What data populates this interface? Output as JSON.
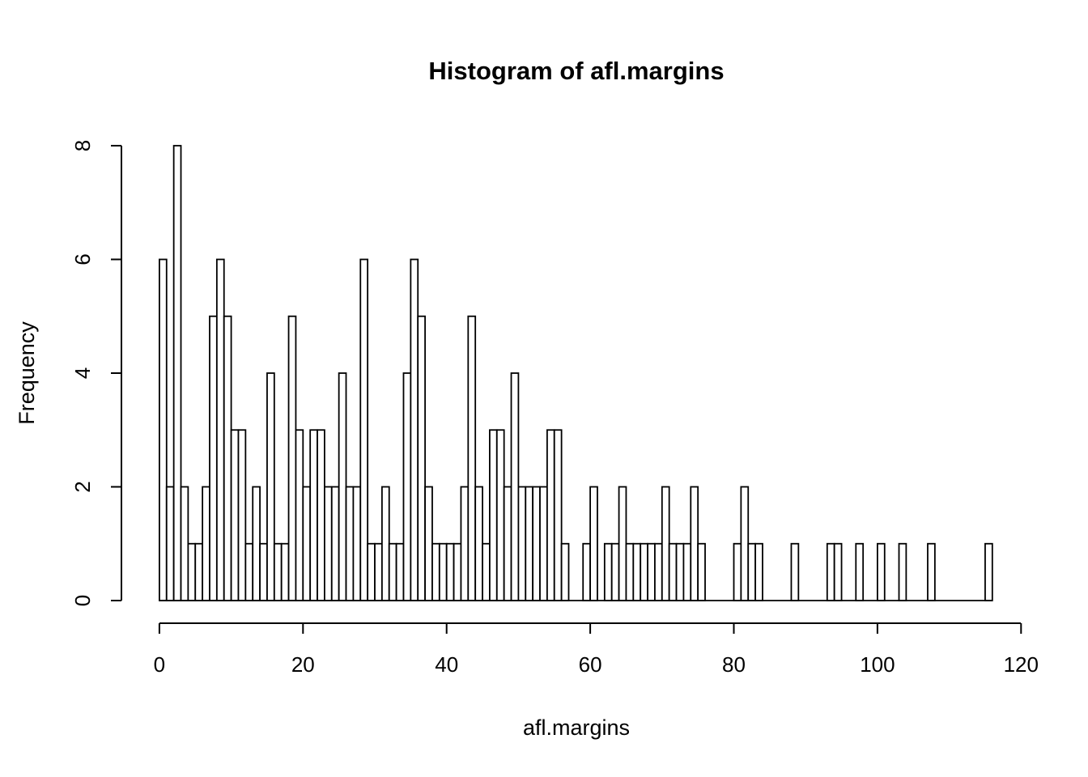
{
  "chart_data": {
    "type": "bar",
    "subtype": "histogram",
    "title": "Histogram of afl.margins",
    "xlabel": "afl.margins",
    "ylabel": "Frequency",
    "x_tick_labels": [
      "0",
      "20",
      "40",
      "60",
      "80",
      "100",
      "120"
    ],
    "x_tick_values": [
      0,
      20,
      40,
      60,
      80,
      100,
      120
    ],
    "y_tick_labels": [
      "0",
      "2",
      "4",
      "6",
      "8"
    ],
    "y_tick_values": [
      0,
      2,
      4,
      6,
      8
    ],
    "xlim": [
      0,
      120
    ],
    "ylim": [
      0,
      8
    ],
    "bin_start": 0,
    "bin_width": 1,
    "bin_count": 116,
    "grid": "off",
    "legend": "none",
    "bar_fill_color": "#ffffff",
    "bar_stroke_color": "#000000",
    "background_color": "#ffffff",
    "frequencies": [
      6,
      2,
      8,
      2,
      1,
      1,
      2,
      5,
      6,
      5,
      3,
      3,
      1,
      2,
      1,
      4,
      1,
      1,
      5,
      3,
      2,
      3,
      3,
      2,
      2,
      4,
      2,
      2,
      6,
      1,
      1,
      2,
      1,
      1,
      4,
      6,
      5,
      2,
      1,
      1,
      1,
      1,
      2,
      5,
      2,
      1,
      3,
      3,
      2,
      4,
      2,
      2,
      2,
      2,
      3,
      3,
      1,
      0,
      0,
      1,
      2,
      0,
      1,
      1,
      2,
      1,
      1,
      1,
      1,
      1,
      2,
      1,
      1,
      1,
      2,
      1,
      0,
      0,
      0,
      0,
      1,
      2,
      1,
      1,
      0,
      0,
      0,
      0,
      1,
      0,
      0,
      0,
      0,
      1,
      1,
      0,
      0,
      1,
      0,
      0,
      1,
      0,
      0,
      1,
      0,
      0,
      0,
      1,
      0,
      0,
      0,
      0,
      0,
      0,
      0,
      1
    ]
  }
}
